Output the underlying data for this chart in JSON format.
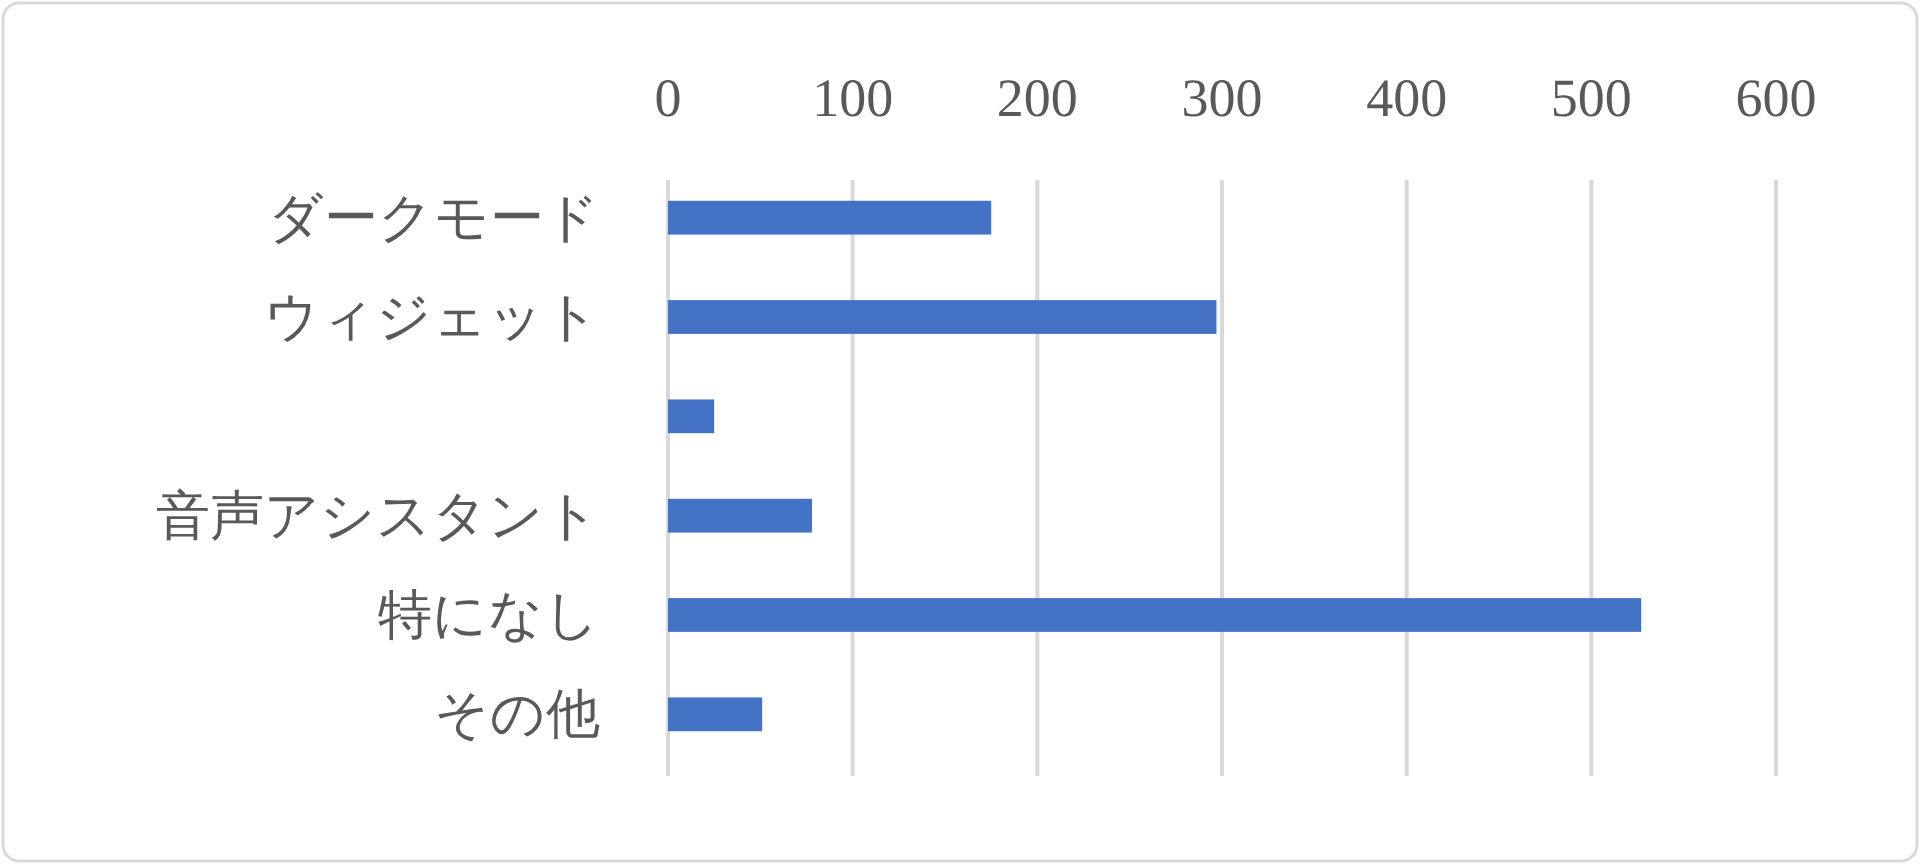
{
  "chart_data": {
    "type": "bar",
    "orientation": "horizontal",
    "categories": [
      "ダークモード",
      "ウィジェット",
      null,
      "音声アシスタント",
      "特になし",
      "その他"
    ],
    "values": [
      175,
      297,
      25,
      78,
      527,
      51
    ],
    "color": "#4472c4",
    "xlim": [
      0,
      600
    ],
    "xticks": [
      0,
      100,
      200,
      300,
      400,
      500,
      600
    ],
    "grid": "x"
  }
}
